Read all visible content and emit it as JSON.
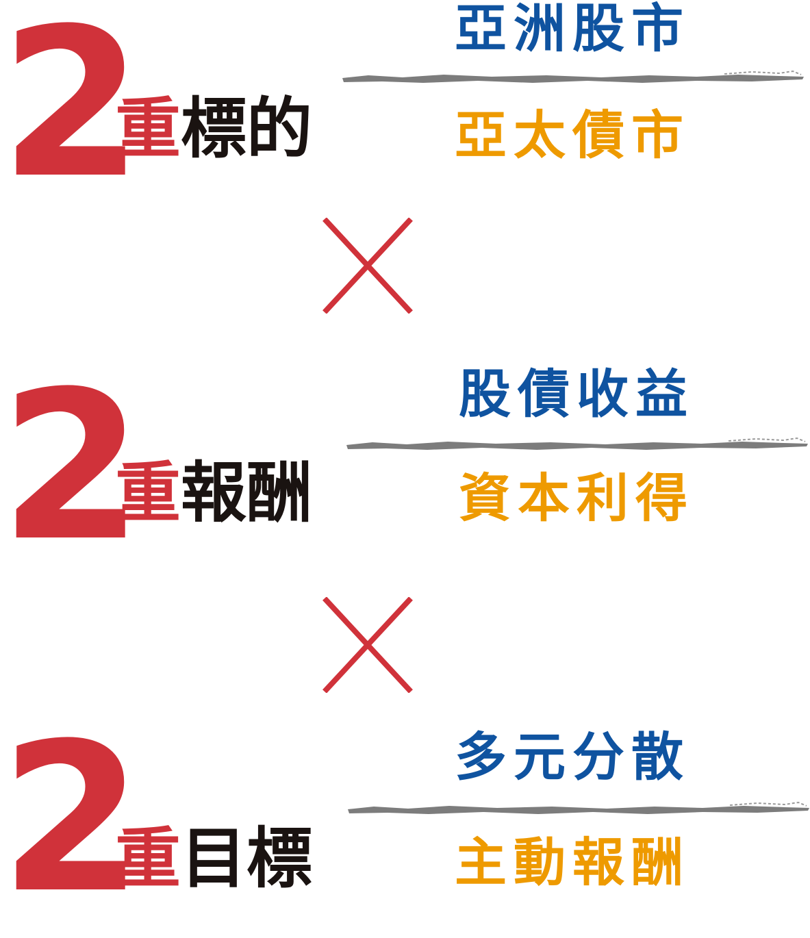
{
  "colors": {
    "accent_red": "#d0323a",
    "text_black": "#1a1311",
    "blue": "#0f53a0",
    "orange": "#ee9a00",
    "divider_gray": "#7c7c7c"
  },
  "operator_icon": "multiply-sign",
  "sections": [
    {
      "number": "2",
      "red_char": "重",
      "label_rest": "標的",
      "top": "亞洲股市",
      "bottom": "亞太債市"
    },
    {
      "number": "2",
      "red_char": "重",
      "label_rest": "報酬",
      "top": "股債收益",
      "bottom": "資本利得"
    },
    {
      "number": "2",
      "red_char": "重",
      "label_rest": "目標",
      "top": "多元分散",
      "bottom": "主動報酬"
    }
  ]
}
